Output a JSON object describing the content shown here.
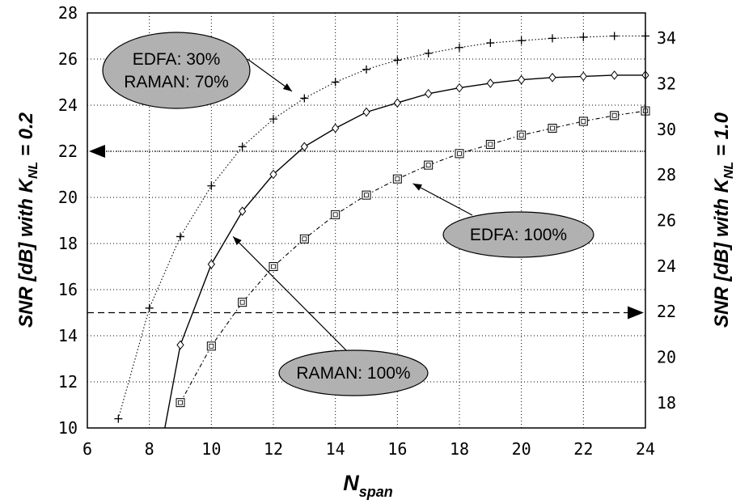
{
  "chart_data": {
    "type": "line",
    "xlabel": {
      "main": "N",
      "sub": "span"
    },
    "ylabel_left": {
      "pre": "SNR [dB] with K",
      "sub": "NL",
      "post": " = 0.2"
    },
    "ylabel_right": {
      "pre": "SNR [dB] with K",
      "sub": "NL",
      "post": " = 1.0"
    },
    "xlim": [
      6,
      24
    ],
    "ylim": [
      10,
      28
    ],
    "ylim_right": [
      16.9,
      35.1
    ],
    "xticks": [
      "6",
      "8",
      "10",
      "12",
      "14",
      "16",
      "18",
      "20",
      "22",
      "24"
    ],
    "yticks_left": [
      "10",
      "12",
      "14",
      "16",
      "18",
      "20",
      "22",
      "24",
      "26",
      "28"
    ],
    "yticks_right": [
      "18",
      "20",
      "22",
      "24",
      "26",
      "28",
      "30",
      "32",
      "34"
    ],
    "grid": true,
    "series": [
      {
        "marker": "plus",
        "line": "dotted",
        "x": [
          7,
          8,
          9,
          10,
          11,
          12,
          13,
          14,
          15,
          16,
          17,
          18,
          19,
          20,
          21,
          22,
          23,
          24
        ],
        "y": [
          10.4,
          15.2,
          18.3,
          20.5,
          22.2,
          23.4,
          24.3,
          25.0,
          25.55,
          25.95,
          26.25,
          26.5,
          26.7,
          26.8,
          26.9,
          26.95,
          27.0,
          27.0
        ]
      },
      {
        "marker": "diamond",
        "line": "solid",
        "x": [
          8.5,
          9,
          10,
          11,
          12,
          13,
          14,
          15,
          16,
          17,
          18,
          19,
          20,
          21,
          22,
          23,
          24
        ],
        "y": [
          10.0,
          13.6,
          17.1,
          19.4,
          21.0,
          22.2,
          23.0,
          23.7,
          24.1,
          24.5,
          24.75,
          24.95,
          25.1,
          25.2,
          25.25,
          25.3,
          25.3
        ]
      },
      {
        "marker": "square",
        "line": "dashdot",
        "x": [
          9,
          10,
          11,
          12,
          13,
          14,
          15,
          16,
          17,
          18,
          19,
          20,
          21,
          22,
          23,
          24
        ],
        "y": [
          11.1,
          13.55,
          15.45,
          17.0,
          18.2,
          19.25,
          20.1,
          20.8,
          21.4,
          21.9,
          22.3,
          22.7,
          23.0,
          23.3,
          23.55,
          23.75
        ]
      }
    ],
    "reference_lines": [
      {
        "y": 22.0,
        "style": "dotted",
        "arrow": "left"
      },
      {
        "y": 15.0,
        "style": "dashed",
        "arrow": "right"
      }
    ],
    "annotations": [
      {
        "lines": [
          "EDFA: 30%",
          "RAMAN: 70%"
        ],
        "points_to": {
          "x": 12.6,
          "y": 24.6
        }
      },
      {
        "lines": [
          "EDFA: 100%"
        ],
        "points_to": {
          "x": 16.5,
          "y": 20.6
        }
      },
      {
        "lines": [
          "RAMAN: 100%"
        ],
        "points_to": {
          "x": 10.7,
          "y": 18.3
        }
      }
    ]
  }
}
